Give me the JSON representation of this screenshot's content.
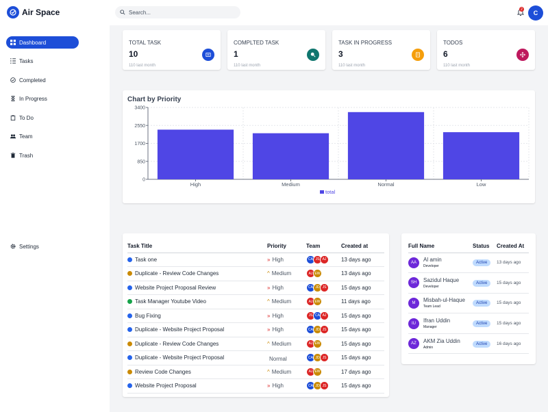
{
  "app": {
    "name": "Air Space"
  },
  "search": {
    "placeholder": "Search..."
  },
  "header": {
    "notification_count": "2",
    "user_initial": "C"
  },
  "sidebar": {
    "items": [
      {
        "label": "Dashboard",
        "icon": "dashboard-icon"
      },
      {
        "label": "Tasks",
        "icon": "list-icon"
      },
      {
        "label": "Completed",
        "icon": "check-circle-icon"
      },
      {
        "label": "In Progress",
        "icon": "hourglass-icon"
      },
      {
        "label": "To Do",
        "icon": "clipboard-icon"
      },
      {
        "label": "Team",
        "icon": "users-icon"
      },
      {
        "label": "Trash",
        "icon": "trash-icon"
      }
    ],
    "settings_label": "Settings"
  },
  "stats": [
    {
      "label": "TOTAL TASK",
      "value": "10",
      "sub": "110 last month",
      "color": "#1d4ed8",
      "icon": "note-icon"
    },
    {
      "label": "COMPLTED TASK",
      "value": "1",
      "sub": "110 last month",
      "color": "#0f766e",
      "icon": "done-icon"
    },
    {
      "label": "TASK IN PROGRESS",
      "value": "3",
      "sub": "110 last month",
      "color": "#f59e0b",
      "icon": "edit-icon"
    },
    {
      "label": "TODOS",
      "value": "6",
      "sub": "110 last month",
      "color": "#be185d",
      "icon": "arrows-icon"
    }
  ],
  "chart_data": {
    "type": "bar",
    "title": "Chart by Priority",
    "categories": [
      "High",
      "Medium",
      "Normal",
      "Low"
    ],
    "series": [
      {
        "name": "total",
        "values": [
          2350,
          2180,
          3180,
          2230
        ],
        "color": "#4f46e5"
      }
    ],
    "yticks": [
      "0",
      "850",
      "1700",
      "2550",
      "3400"
    ],
    "ylim": [
      0,
      3400
    ],
    "grid": true,
    "legend": "bottom"
  },
  "tasks_table": {
    "headers": [
      "Task Title",
      "Priority",
      "Team",
      "Created at"
    ],
    "rows": [
      {
        "title": "Task one",
        "dot": "#2563eb",
        "priority": "High",
        "pcolor": "#dc2626",
        "parrow": "»",
        "team": [
          "CA",
          "JS",
          "AJ"
        ],
        "created": "13 days ago"
      },
      {
        "title": "Duplicate - Review Code Changes",
        "dot": "#ca8a04",
        "priority": "Medium",
        "pcolor": "#ca8a04",
        "parrow": "^",
        "team": [
          "AJ",
          "EW"
        ],
        "created": "13 days ago"
      },
      {
        "title": "Website Project Proposal Review",
        "dot": "#2563eb",
        "priority": "High",
        "pcolor": "#dc2626",
        "parrow": "»",
        "team": [
          "CA",
          "JD",
          "JS"
        ],
        "created": "15 days ago"
      },
      {
        "title": "Task Manager Youtube Video",
        "dot": "#16a34a",
        "priority": "Medium",
        "pcolor": "#ca8a04",
        "parrow": "^",
        "team": [
          "AJ",
          "EW"
        ],
        "created": "11 days ago"
      },
      {
        "title": "Bug Fixing",
        "dot": "#2563eb",
        "priority": "High",
        "pcolor": "#dc2626",
        "parrow": "»",
        "team": [
          "JS",
          "CA",
          "AJ"
        ],
        "created": "15 days ago"
      },
      {
        "title": "Duplicate - Website Project Proposal",
        "dot": "#2563eb",
        "priority": "High",
        "pcolor": "#dc2626",
        "parrow": "»",
        "team": [
          "CA",
          "JD",
          "JS"
        ],
        "created": "15 days ago"
      },
      {
        "title": "Duplicate - Review Code Changes",
        "dot": "#ca8a04",
        "priority": "Medium",
        "pcolor": "#ca8a04",
        "parrow": "^",
        "team": [
          "AJ",
          "EW"
        ],
        "created": "15 days ago"
      },
      {
        "title": "Duplicate - Website Project Proposal",
        "dot": "#2563eb",
        "priority": "Normal",
        "pcolor": "#6b7280",
        "parrow": "",
        "team": [
          "CA",
          "JD",
          "JS"
        ],
        "created": "15 days ago"
      },
      {
        "title": "Review Code Changes",
        "dot": "#ca8a04",
        "priority": "Medium",
        "pcolor": "#ca8a04",
        "parrow": "^",
        "team": [
          "AJ",
          "EW"
        ],
        "created": "17 days ago"
      },
      {
        "title": "Website Project Proposal",
        "dot": "#2563eb",
        "priority": "High",
        "pcolor": "#dc2626",
        "parrow": "»",
        "team": [
          "CA",
          "JD",
          "JS"
        ],
        "created": "15 days ago"
      }
    ]
  },
  "team_colors": {
    "CA": "#1d4ed8",
    "JS": "#dc2626",
    "AJ": "#dc2626",
    "EW": "#ca8a04",
    "JD": "#ca8a04"
  },
  "users_table": {
    "headers": [
      "Full Name",
      "Status",
      "Created At"
    ],
    "rows": [
      {
        "initials": "AA",
        "name": "Al amin",
        "role": "Developer",
        "status": "Active",
        "created": "13 days ago"
      },
      {
        "initials": "SH",
        "name": "Sazidul Haque",
        "role": "Developer",
        "status": "Active",
        "created": "15 days ago"
      },
      {
        "initials": "M",
        "name": "Misbah-ul-Haque",
        "role": "Team Lead",
        "status": "Active",
        "created": "15 days ago"
      },
      {
        "initials": "IU",
        "name": "Ifran Uddin",
        "role": "Manager",
        "status": "Active",
        "created": "15 days ago"
      },
      {
        "initials": "AZ",
        "name": "AKM Zia Uddin",
        "role": "Admin",
        "status": "Active",
        "created": "16 days ago"
      }
    ]
  }
}
